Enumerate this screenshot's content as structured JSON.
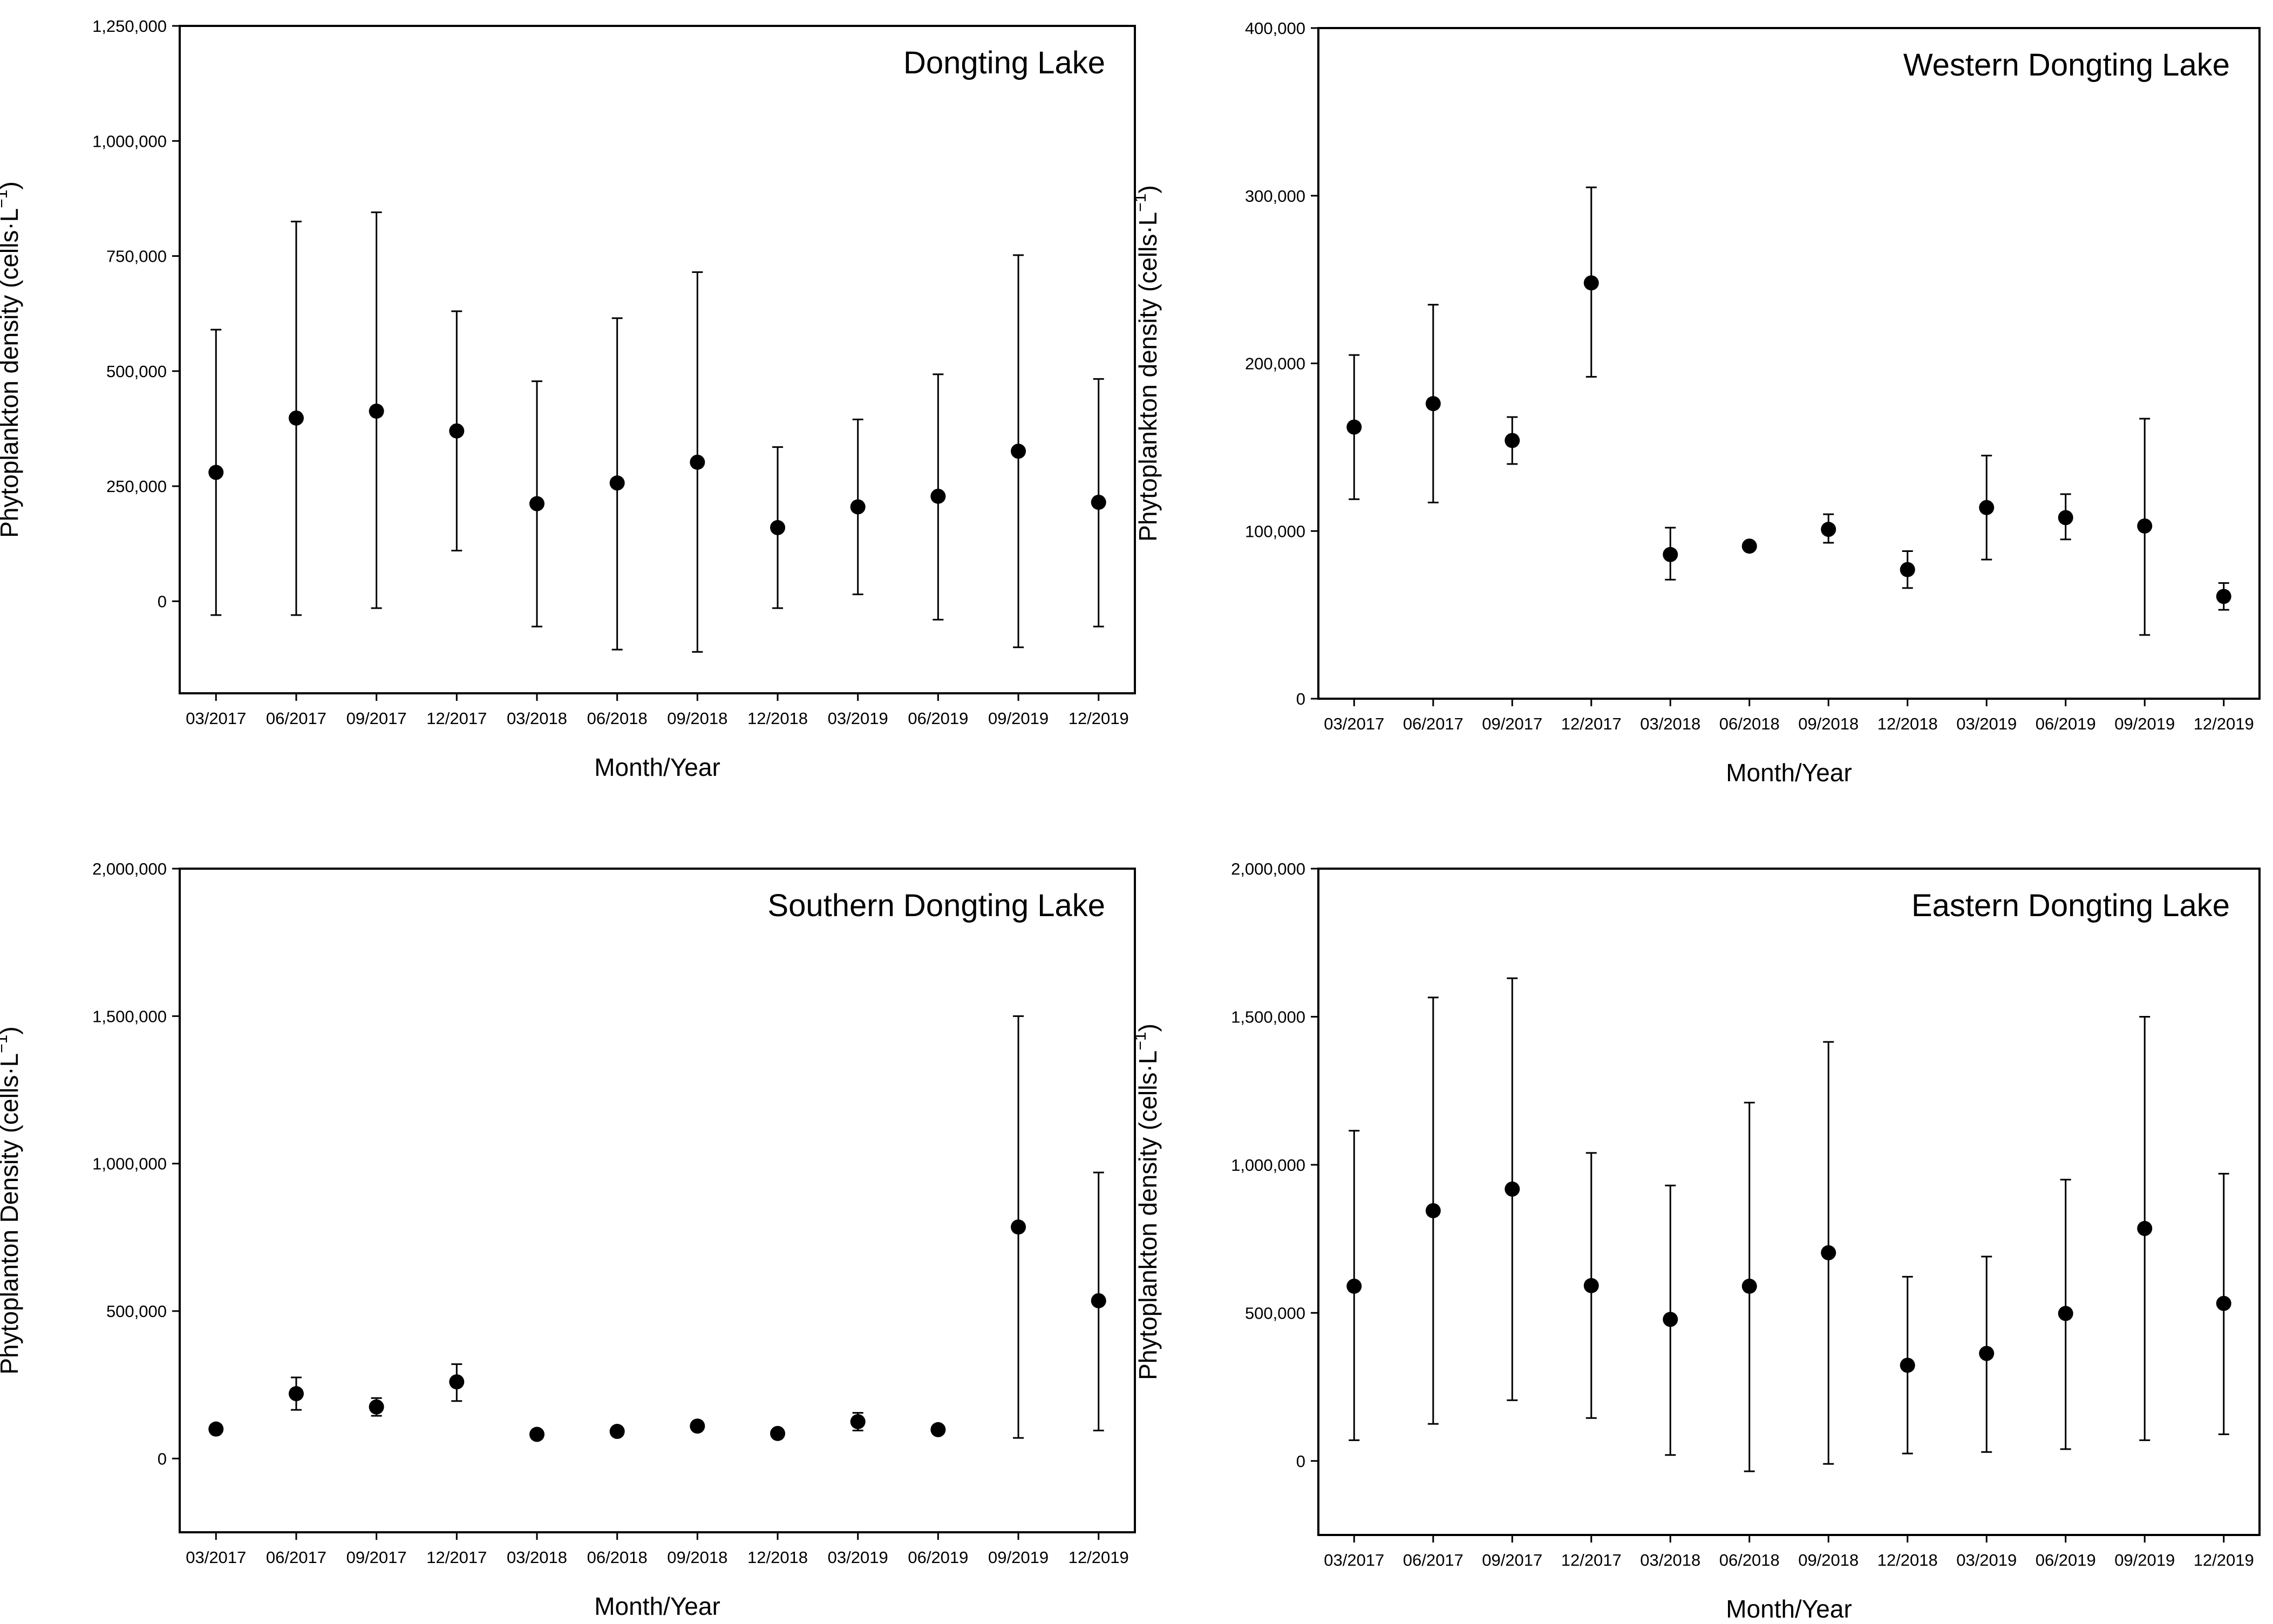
{
  "figure": {
    "colors": {
      "axis": "#000000",
      "marker": "#000000",
      "background": "#ffffff"
    }
  },
  "chart_data": [
    {
      "type": "scatter",
      "title": "Dongting Lake",
      "xlabel": "Month/Year",
      "ylabel": "Phytoplankton density (cells·L",
      "ylabel_sup": "−1",
      "ylabel_close": ")",
      "ylim": [
        -200000,
        1250000
      ],
      "yticks": [
        0,
        250000,
        500000,
        750000,
        1000000,
        1250000
      ],
      "ytick_labels": [
        "0",
        "250,000",
        "500,000",
        "750,000",
        "1,000,000",
        "1,250,000"
      ],
      "categories": [
        "03/2017",
        "06/2017",
        "09/2017",
        "12/2017",
        "03/2018",
        "06/2018",
        "09/2018",
        "12/2018",
        "03/2019",
        "06/2019",
        "09/2019",
        "12/2019"
      ],
      "values": [
        280000,
        398000,
        413000,
        370000,
        212000,
        257000,
        302000,
        160000,
        205000,
        228000,
        326000,
        215000
      ],
      "err_low": [
        -30000,
        -30000,
        -15000,
        110000,
        -55000,
        -105000,
        -110000,
        -15000,
        15000,
        -40000,
        -100000,
        -55000
      ],
      "err_high": [
        590000,
        825000,
        845000,
        630000,
        478000,
        615000,
        715000,
        335000,
        395000,
        493000,
        752000,
        483000
      ]
    },
    {
      "type": "scatter",
      "title": "Western Dongting Lake",
      "xlabel": "Month/Year",
      "ylabel": "Phytoplankton density (cells·L",
      "ylabel_sup": "−1",
      "ylabel_close": ")",
      "ylim": [
        0,
        400000
      ],
      "yticks": [
        0,
        100000,
        200000,
        300000,
        400000
      ],
      "ytick_labels": [
        "0",
        "100,000",
        "200,000",
        "300,000",
        "400,000"
      ],
      "categories": [
        "03/2017",
        "06/2017",
        "09/2017",
        "12/2017",
        "03/2018",
        "06/2018",
        "09/2018",
        "12/2018",
        "03/2019",
        "06/2019",
        "09/2019",
        "12/2019"
      ],
      "values": [
        162000,
        176000,
        154000,
        248000,
        86000,
        91000,
        101000,
        77000,
        114000,
        108000,
        103000,
        61000
      ],
      "err_low": [
        119000,
        117000,
        140000,
        192000,
        71000,
        91000,
        93000,
        66000,
        83000,
        95000,
        38000,
        53000
      ],
      "err_high": [
        205000,
        235000,
        168000,
        305000,
        102000,
        91000,
        110000,
        88000,
        145000,
        122000,
        167000,
        69000
      ]
    },
    {
      "type": "scatter",
      "title": "Southern Dongting Lake",
      "xlabel": "Month/Year",
      "ylabel": "Phytoplanton Density (cells·L",
      "ylabel_sup": "−1",
      "ylabel_close": ")",
      "ylim": [
        -250000,
        2000000
      ],
      "yticks": [
        0,
        500000,
        1000000,
        1500000,
        2000000
      ],
      "ytick_labels": [
        "0",
        "500,000",
        "1,000,000",
        "1,500,000",
        "2,000,000"
      ],
      "categories": [
        "03/2017",
        "06/2017",
        "09/2017",
        "12/2017",
        "03/2018",
        "06/2018",
        "09/2018",
        "12/2018",
        "03/2019",
        "06/2019",
        "09/2019",
        "12/2019"
      ],
      "values": [
        100000,
        220000,
        175000,
        260000,
        82000,
        92000,
        110000,
        85000,
        125000,
        98000,
        785000,
        535000
      ],
      "err_low": [
        100000,
        165000,
        145000,
        195000,
        82000,
        92000,
        110000,
        85000,
        95000,
        98000,
        70000,
        95000
      ],
      "err_high": [
        100000,
        275000,
        205000,
        320000,
        82000,
        92000,
        110000,
        85000,
        155000,
        98000,
        1500000,
        970000
      ]
    },
    {
      "type": "scatter",
      "title": "Eastern Dongting Lake",
      "xlabel": "Month/Year",
      "ylabel": "Phytoplankton density (cells·L",
      "ylabel_sup": "−1",
      "ylabel_close": ")",
      "ylim": [
        -250000,
        2000000
      ],
      "yticks": [
        0,
        500000,
        1000000,
        1500000,
        2000000
      ],
      "ytick_labels": [
        "0",
        "500,000",
        "1,000,000",
        "1,500,000",
        "2,000,000"
      ],
      "categories": [
        "03/2017",
        "06/2017",
        "09/2017",
        "12/2017",
        "03/2018",
        "06/2018",
        "09/2018",
        "12/2018",
        "03/2019",
        "06/2019",
        "09/2019",
        "12/2019"
      ],
      "values": [
        590000,
        845000,
        918000,
        592000,
        478000,
        590000,
        703000,
        323000,
        363000,
        498000,
        785000,
        532000
      ],
      "err_low": [
        70000,
        125000,
        205000,
        145000,
        20000,
        -35000,
        -10000,
        25000,
        30000,
        40000,
        70000,
        90000
      ],
      "err_high": [
        1115000,
        1565000,
        1630000,
        1040000,
        930000,
        1210000,
        1415000,
        622000,
        690000,
        950000,
        1500000,
        970000
      ]
    }
  ]
}
